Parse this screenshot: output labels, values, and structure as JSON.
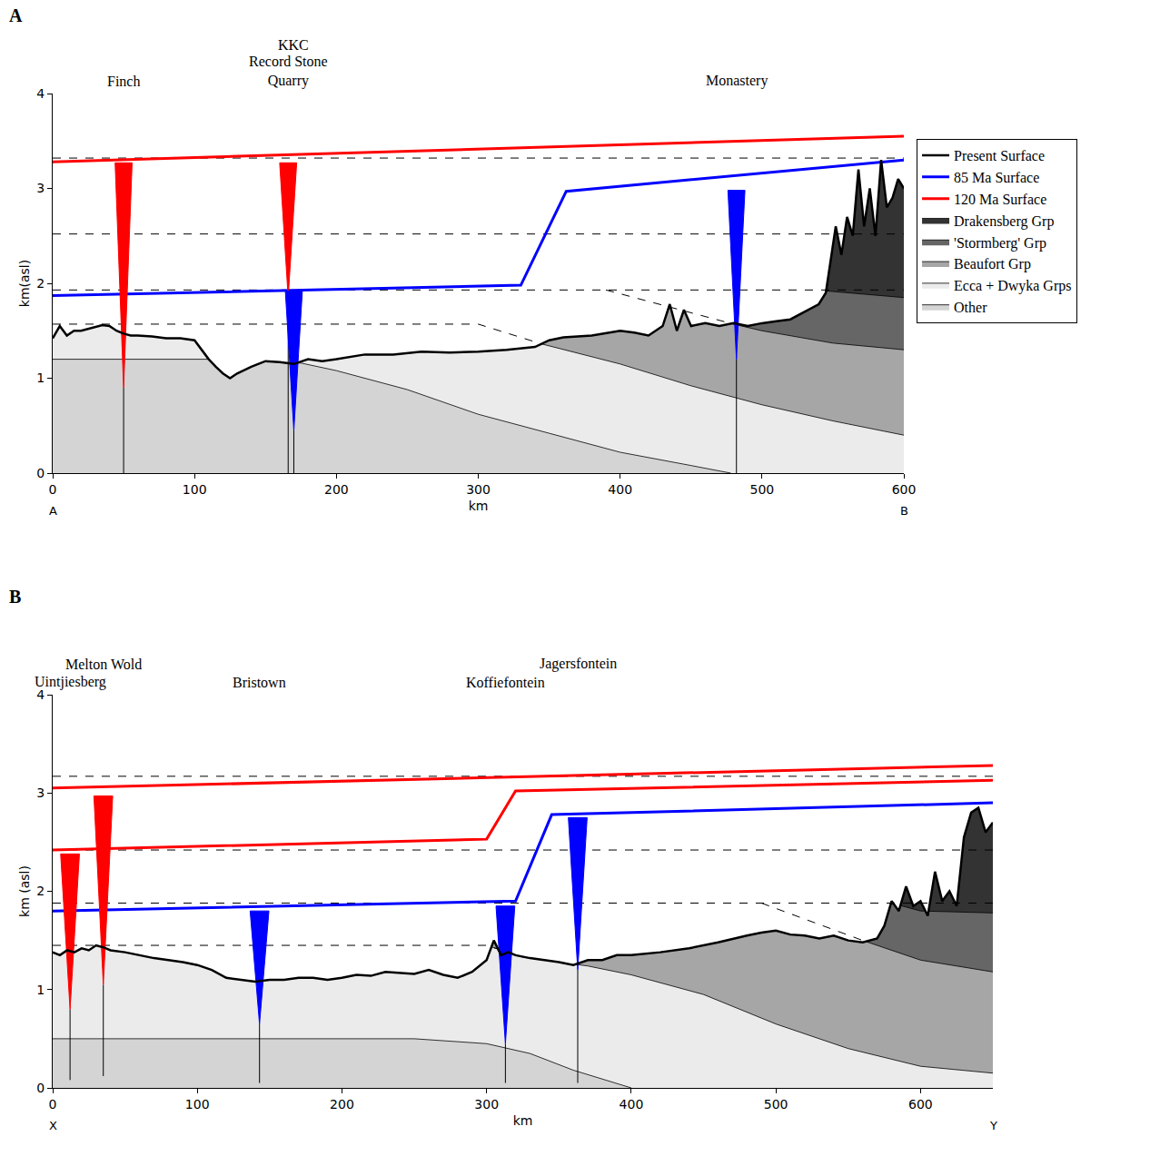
{
  "chart_data": [
    {
      "type": "line",
      "panel_label": "A",
      "xlabel": "km",
      "ylabel": "km(asl)",
      "xlim": [
        0,
        600
      ],
      "xticks": [
        0,
        100,
        200,
        300,
        400,
        500,
        600
      ],
      "ylim": [
        0,
        4
      ],
      "yticks": [
        0,
        1,
        2,
        3,
        4
      ],
      "grid": false,
      "legend": "right",
      "annotations": [
        {
          "x": 0,
          "text": "A"
        },
        {
          "x": 600,
          "text": "B"
        }
      ],
      "series": [
        {
          "name": "Present Surface",
          "type": "surface",
          "color": "#000000",
          "x": [
            0,
            5,
            10,
            15,
            20,
            25,
            30,
            35,
            40,
            45,
            50,
            55,
            60,
            70,
            80,
            90,
            100,
            105,
            110,
            115,
            120,
            125,
            130,
            140,
            150,
            160,
            170,
            180,
            190,
            200,
            220,
            240,
            260,
            280,
            300,
            320,
            340,
            350,
            360,
            380,
            400,
            410,
            420,
            430,
            435,
            440,
            445,
            450,
            460,
            470,
            480,
            490,
            500,
            510,
            520,
            530,
            540,
            545,
            548,
            552,
            556,
            560,
            564,
            568,
            572,
            576,
            580,
            584,
            588,
            592,
            596,
            600
          ],
          "values": [
            1.42,
            1.55,
            1.45,
            1.5,
            1.5,
            1.52,
            1.54,
            1.56,
            1.55,
            1.5,
            1.47,
            1.45,
            1.45,
            1.44,
            1.42,
            1.42,
            1.4,
            1.3,
            1.2,
            1.12,
            1.05,
            1.0,
            1.05,
            1.12,
            1.18,
            1.17,
            1.15,
            1.2,
            1.18,
            1.2,
            1.25,
            1.25,
            1.28,
            1.27,
            1.28,
            1.3,
            1.33,
            1.4,
            1.43,
            1.45,
            1.5,
            1.48,
            1.45,
            1.55,
            1.78,
            1.5,
            1.72,
            1.55,
            1.58,
            1.55,
            1.58,
            1.55,
            1.58,
            1.6,
            1.62,
            1.7,
            1.78,
            1.9,
            2.2,
            2.6,
            2.3,
            2.7,
            2.5,
            3.2,
            2.6,
            3.0,
            2.5,
            3.3,
            2.8,
            2.9,
            3.1,
            3.0
          ]
        },
        {
          "name": "85 Ma Surface",
          "type": "line",
          "color": "#0000ff",
          "x": [
            0,
            330,
            362,
            600
          ],
          "values": [
            1.87,
            1.98,
            2.97,
            3.3
          ]
        },
        {
          "name": "120 Ma Surface",
          "type": "line",
          "color": "#ff0000",
          "x": [
            0,
            600
          ],
          "values": [
            3.28,
            3.55
          ]
        },
        {
          "name": "Drakensberg Grp",
          "type": "area",
          "color": "#333333",
          "x": [
            0,
            600
          ],
          "values": [
            3.32,
            3.32
          ]
        },
        {
          "name": "'Stormberg' Grp",
          "type": "area",
          "color": "#666666",
          "x": [
            0,
            545,
            600
          ],
          "values": [
            1.93,
            1.92,
            1.85
          ]
        },
        {
          "name": "Beaufort Grp",
          "type": "area",
          "color": "#a6a6a6",
          "x": [
            0,
            390,
            480,
            500,
            550,
            600
          ],
          "values": [
            1.93,
            1.93,
            1.57,
            1.5,
            1.37,
            1.3
          ]
        },
        {
          "name": "Ecca + Dwyka Grps",
          "type": "area",
          "color": "#ebebeb",
          "x": [
            0,
            300,
            345,
            400,
            450,
            500,
            550,
            600
          ],
          "values": [
            1.57,
            1.57,
            1.36,
            1.15,
            0.92,
            0.72,
            0.55,
            0.4
          ]
        },
        {
          "name": "Other",
          "type": "area",
          "color": "#d4d4d4",
          "x": [
            0,
            110,
            175,
            200,
            250,
            300,
            350,
            400,
            450,
            478
          ],
          "values": [
            1.2,
            1.2,
            1.16,
            1.08,
            0.88,
            0.62,
            0.42,
            0.22,
            0.08,
            0
          ]
        },
        {
          "type": "line",
          "line_style": "dash",
          "color": "#000000",
          "x": [
            0,
            600
          ],
          "values": [
            3.32,
            3.32
          ]
        },
        {
          "type": "line",
          "line_style": "dash",
          "color": "#000000",
          "x": [
            0,
            600
          ],
          "values": [
            2.52,
            2.52
          ]
        },
        {
          "type": "line",
          "line_style": "dash",
          "color": "#000000",
          "x": [
            0,
            600
          ],
          "values": [
            1.93,
            1.93
          ]
        },
        {
          "type": "line",
          "line_style": "dash",
          "color": "#000000",
          "x": [
            390,
            480
          ],
          "values": [
            1.93,
            1.57
          ]
        },
        {
          "type": "line",
          "line_style": "dash",
          "color": "#000000",
          "x": [
            0,
            300,
            345
          ],
          "values": [
            1.57,
            1.57,
            1.36
          ]
        }
      ],
      "samples": [
        {
          "label": "Finch",
          "x": 50,
          "color": "#ff0000",
          "top": 3.27,
          "bottom": 0.9,
          "base": 0
        },
        {
          "label": "Record Stone Quarry",
          "x": 166,
          "color": "#ff0000",
          "top": 3.27,
          "bottom": 1.85,
          "base": 0
        },
        {
          "label": "KKC",
          "x": 170,
          "color": "#0000ff",
          "top": 1.92,
          "bottom": 0.45,
          "base": 0
        },
        {
          "label": "Monastery",
          "x": 482,
          "color": "#0000ff",
          "top": 2.98,
          "bottom": 1.2,
          "base": 0
        }
      ]
    },
    {
      "type": "line",
      "panel_label": "B",
      "xlabel": "km",
      "ylabel": "km (asl)",
      "xlim": [
        0,
        650
      ],
      "xticks": [
        0,
        100,
        200,
        300,
        400,
        500,
        600
      ],
      "ylim": [
        0,
        4
      ],
      "yticks": [
        0,
        1,
        2,
        3,
        4
      ],
      "grid": false,
      "annotations": [
        {
          "x": 0,
          "text": "X"
        },
        {
          "x": 650,
          "text": "Y"
        }
      ],
      "series": [
        {
          "name": "Present Surface",
          "type": "surface",
          "color": "#000000",
          "x": [
            0,
            5,
            10,
            15,
            20,
            25,
            30,
            35,
            40,
            50,
            60,
            70,
            80,
            90,
            100,
            110,
            120,
            130,
            140,
            150,
            160,
            170,
            180,
            190,
            200,
            210,
            220,
            230,
            240,
            250,
            260,
            270,
            280,
            290,
            300,
            305,
            310,
            315,
            320,
            330,
            340,
            350,
            360,
            370,
            380,
            390,
            400,
            420,
            440,
            460,
            480,
            490,
            500,
            510,
            520,
            530,
            540,
            550,
            560,
            570,
            575,
            580,
            585,
            590,
            595,
            600,
            605,
            610,
            615,
            620,
            625,
            630,
            635,
            640,
            645,
            650
          ],
          "values": [
            1.38,
            1.35,
            1.4,
            1.38,
            1.42,
            1.4,
            1.45,
            1.43,
            1.4,
            1.38,
            1.35,
            1.32,
            1.3,
            1.28,
            1.25,
            1.2,
            1.12,
            1.1,
            1.08,
            1.1,
            1.1,
            1.12,
            1.12,
            1.1,
            1.12,
            1.15,
            1.14,
            1.18,
            1.17,
            1.16,
            1.2,
            1.15,
            1.12,
            1.18,
            1.3,
            1.5,
            1.35,
            1.38,
            1.35,
            1.32,
            1.3,
            1.28,
            1.25,
            1.3,
            1.3,
            1.35,
            1.35,
            1.38,
            1.42,
            1.48,
            1.55,
            1.58,
            1.6,
            1.56,
            1.55,
            1.52,
            1.55,
            1.5,
            1.48,
            1.52,
            1.65,
            1.9,
            1.8,
            2.05,
            1.85,
            1.9,
            1.75,
            2.2,
            1.9,
            2.0,
            1.85,
            2.55,
            2.8,
            2.85,
            2.6,
            2.7
          ]
        },
        {
          "name": "85 Ma Surface",
          "type": "line",
          "color": "#0000ff",
          "x": [
            0,
            320,
            345,
            650
          ],
          "values": [
            1.8,
            1.9,
            2.78,
            2.9
          ]
        },
        {
          "name": "120 Ma Surface",
          "type": "line",
          "color": "#ff0000",
          "x": [
            0,
            650
          ],
          "values": [
            3.05,
            3.28
          ]
        },
        {
          "name": "120 Ma Surface",
          "type": "line",
          "color": "#ff0000",
          "x": [
            0,
            300,
            320,
            650
          ],
          "values": [
            2.42,
            2.53,
            3.02,
            3.13
          ]
        },
        {
          "name": "Drakensberg Grp",
          "type": "area",
          "color": "#333333",
          "x": [
            0,
            650
          ],
          "values": [
            3.17,
            3.17
          ]
        },
        {
          "name": "'Stormberg' Grp",
          "type": "area",
          "color": "#666666",
          "x": [
            0,
            580,
            600,
            650
          ],
          "values": [
            1.88,
            1.88,
            1.8,
            1.78
          ]
        },
        {
          "name": "Beaufort Grp",
          "type": "area",
          "color": "#a6a6a6",
          "x": [
            0,
            490,
            560,
            600,
            650
          ],
          "values": [
            1.88,
            1.88,
            1.5,
            1.3,
            1.18
          ]
        },
        {
          "name": "Ecca + Dwyka Grps",
          "type": "area",
          "color": "#ebebeb",
          "x": [
            0,
            300,
            325,
            370,
            400,
            450,
            500,
            550,
            600,
            650
          ],
          "values": [
            1.45,
            1.45,
            1.33,
            1.24,
            1.15,
            0.95,
            0.65,
            0.4,
            0.22,
            0.15
          ]
        },
        {
          "name": "Other",
          "type": "area",
          "color": "#d4d4d4",
          "x": [
            0,
            250,
            300,
            330,
            360,
            400
          ],
          "values": [
            0.5,
            0.5,
            0.45,
            0.35,
            0.18,
            0
          ]
        },
        {
          "type": "line",
          "line_style": "dash",
          "color": "#000000",
          "x": [
            0,
            650
          ],
          "values": [
            3.17,
            3.17
          ]
        },
        {
          "type": "line",
          "line_style": "dash",
          "color": "#000000",
          "x": [
            0,
            650
          ],
          "values": [
            2.42,
            2.42
          ]
        },
        {
          "type": "line",
          "line_style": "dash",
          "color": "#000000",
          "x": [
            0,
            650
          ],
          "values": [
            1.88,
            1.88
          ]
        },
        {
          "type": "line",
          "line_style": "dash",
          "color": "#000000",
          "x": [
            490,
            560
          ],
          "values": [
            1.88,
            1.5
          ]
        },
        {
          "type": "line",
          "line_style": "dash",
          "color": "#000000",
          "x": [
            0,
            300,
            325
          ],
          "values": [
            1.45,
            1.45,
            1.33
          ]
        }
      ],
      "samples": [
        {
          "label": "Uintjiesberg",
          "x": 12,
          "color": "#ff0000",
          "top": 2.38,
          "bottom": 0.8,
          "base": 0.08
        },
        {
          "label": "Melton Wold",
          "x": 35,
          "color": "#ff0000",
          "top": 2.97,
          "bottom": 1.05,
          "base": 0.12
        },
        {
          "label": "Bristown",
          "x": 143,
          "color": "#0000ff",
          "top": 1.8,
          "bottom": 0.65,
          "base": 0.05
        },
        {
          "label": "Koffiefontein",
          "x": 313,
          "color": "#0000ff",
          "top": 1.85,
          "bottom": 0.45,
          "base": 0.05
        },
        {
          "label": "Jagersfontein",
          "x": 363,
          "color": "#0000ff",
          "top": 2.75,
          "bottom": 1.2,
          "base": 0.05
        }
      ]
    }
  ]
}
